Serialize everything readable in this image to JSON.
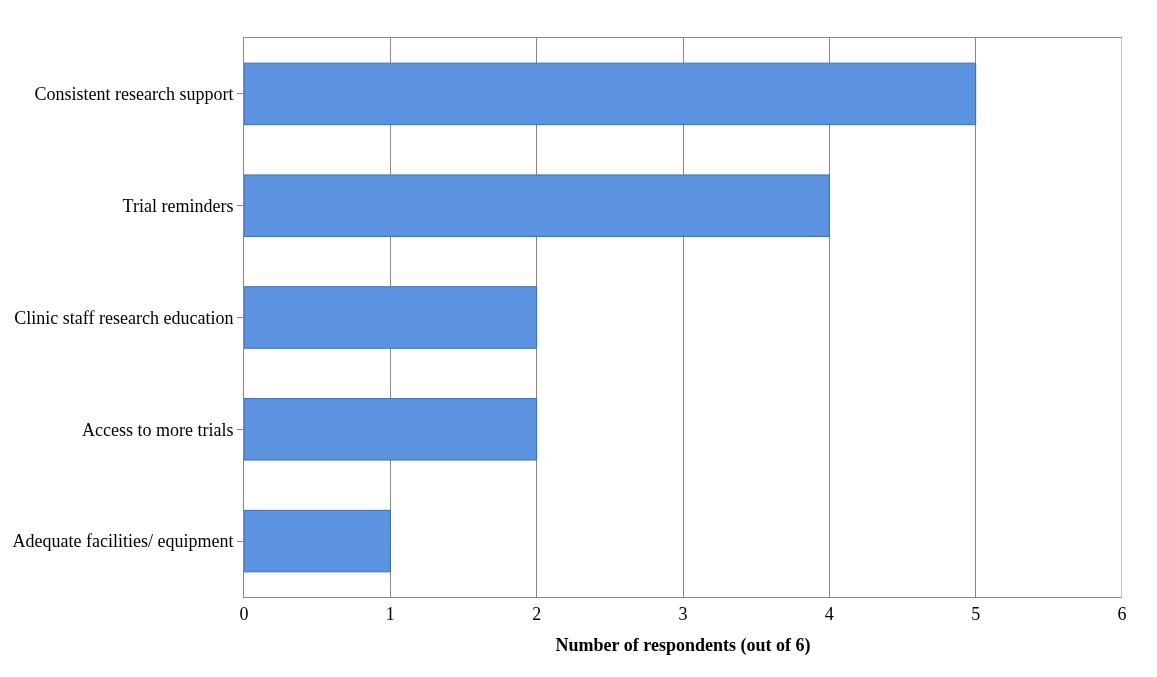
{
  "chart_data": {
    "type": "bar",
    "orientation": "horizontal",
    "xlabel": "Number of respondents (out of 6)",
    "categories": [
      "Consistent research support",
      "Trial reminders",
      "Clinic staff research education",
      "Access to more trials",
      "Adequate facilities/ equipment"
    ],
    "values": [
      5,
      4,
      2,
      2,
      1
    ],
    "color": "#5b93e0",
    "xlim": [
      0,
      6
    ],
    "xticks": [
      0,
      1,
      2,
      3,
      4,
      5,
      6
    ],
    "grid": "x"
  }
}
